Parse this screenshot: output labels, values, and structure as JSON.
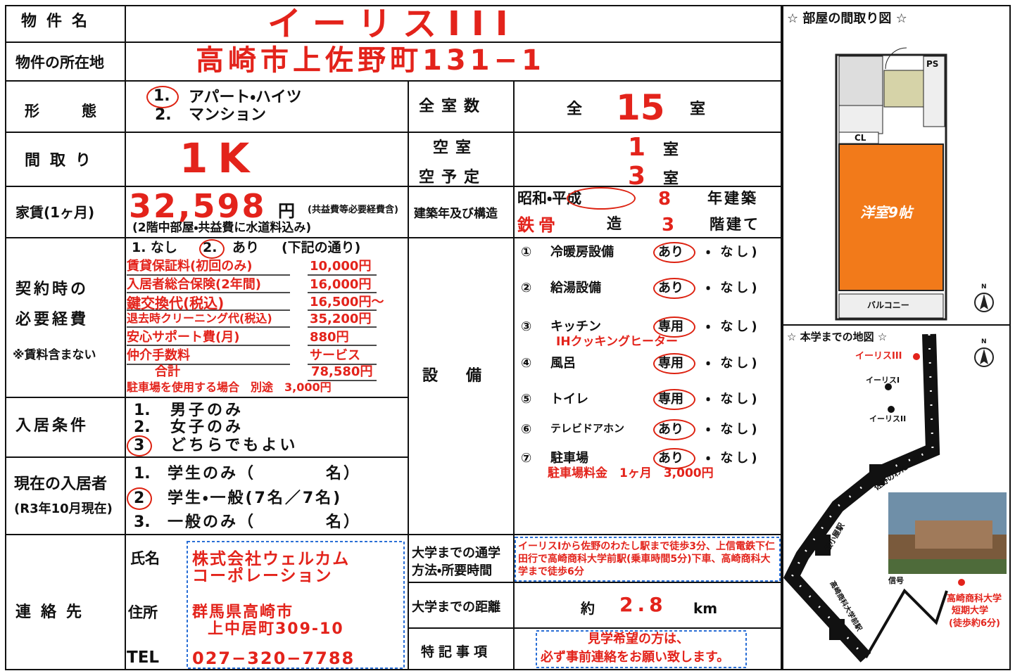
{
  "property_name": {
    "label": "物件名",
    "value": "イーリスIII"
  },
  "location": {
    "label": "物件の所在地",
    "value": "高崎市上佐野町131−1"
  },
  "form": {
    "label": "形態",
    "options": [
      {
        "number": "1.",
        "text": "アパート・ハイツ"
      },
      {
        "number": "2.",
        "text": "マンション"
      }
    ]
  },
  "total_rooms": {
    "label": "全室数",
    "prefix": "全",
    "value": "15",
    "unit": "室"
  },
  "layout": {
    "label": "間取り",
    "value": "1K"
  },
  "vacancy": {
    "vacant_label": "空室",
    "vacant": "1",
    "planned_label": "空予定",
    "planned": "3",
    "unit": "室"
  },
  "rent": {
    "label": "家賃(1ヶ月)",
    "amount": "32,598",
    "unit": "円",
    "note": "(共益費等必要経費含)",
    "detail": "(2階中部屋・共益費に水道料込み)"
  },
  "construction": {
    "label": "建築年及び構造",
    "era": "昭和・平成",
    "year": "8",
    "year_suffix": "年建築",
    "structure": "鉄骨",
    "structure_suffix": "造",
    "floors": "3",
    "floors_suffix": "階建て"
  },
  "contract": {
    "label_lines": [
      "契約時の",
      "必要経費"
    ],
    "note": "※賃料含まない",
    "option_none": "1. なし",
    "option_yes_number": "2.",
    "option_yes": "あり",
    "option_yes_note": "(下記の通り)",
    "items": [
      {
        "name": "賃貸保証料(初回のみ)",
        "amount": "10,000円"
      },
      {
        "name": "入居者総合保険(2年間)",
        "amount": "16,000円"
      },
      {
        "name": "鍵交換代(税込)",
        "amount": "16,500円〜"
      },
      {
        "name": "退去時クリーニング代(税込)",
        "amount": "35,200円"
      },
      {
        "name": "安心サポート費(月)",
        "amount": "880円"
      },
      {
        "name": "仲介手数料",
        "amount": "サービス"
      }
    ],
    "total_label": "合計",
    "total": "78,580円",
    "parking_note": "駐車場を使用する場合　別途　3,000円"
  },
  "facilities": {
    "label": "設備",
    "items": [
      {
        "number": "①",
        "name": "冷暖房設備",
        "choice": "あり",
        "other": "・ なし)"
      },
      {
        "number": "②",
        "name": "給湯設備",
        "choice": "あり",
        "other": "・ なし)"
      },
      {
        "number": "③",
        "name": "キッチン",
        "choice": "専用",
        "other": "・ なし)",
        "note": "IHクッキングヒーター"
      },
      {
        "number": "④",
        "name": "風呂",
        "choice": "専用",
        "other": "・ なし)"
      },
      {
        "number": "⑤",
        "name": "トイレ",
        "choice": "専用",
        "other": "・ なし)"
      },
      {
        "number": "⑥",
        "name": "テレビドアホン",
        "choice": "あり",
        "other": "・ なし)"
      },
      {
        "number": "⑦",
        "name": "駐車場",
        "choice": "あり",
        "other": "・ なし)",
        "note": "駐車場料金　1ヶ月　3,000円"
      }
    ]
  },
  "tenant_condition": {
    "label": "入居条件",
    "options": [
      {
        "number": "1.",
        "text": "男子のみ"
      },
      {
        "number": "2.",
        "text": "女子のみ"
      },
      {
        "number": "3",
        "text": "どちらでもよい"
      }
    ]
  },
  "current_residents": {
    "label": "現在の入居者",
    "as_of": "(R3年10月現在)",
    "options": [
      {
        "number": "1.",
        "text": "学生のみ（　　　　名）"
      },
      {
        "number": "2",
        "text": "学生・一般(7名／7名)"
      },
      {
        "number": "3.",
        "text": "一般のみ（　　　　名）"
      }
    ]
  },
  "contact": {
    "label": "連絡先",
    "name_label": "氏名",
    "name_lines": [
      "株式会社ウェルカム",
      "コーポレーション"
    ],
    "address_label": "住所",
    "address_lines": [
      "群馬県高崎市",
      "上中居町309-10"
    ],
    "tel_label": "TEL",
    "tel": "027−320−7788"
  },
  "commute": {
    "label_lines": [
      "大学までの通学",
      "方法・所要時間"
    ],
    "text": "イーリスIから佐野のわたし駅まで徒歩3分、上信電鉄下仁田行で高崎商科大学前駅(乗車時間5分)下車、高崎商科大学まで徒歩6分"
  },
  "distance": {
    "label": "大学までの距離",
    "prefix": "約",
    "value": "2.8",
    "unit": "km"
  },
  "remarks": {
    "label": "特記事項",
    "lines": [
      "見学希望の方は、",
      "必ず事前連絡をお願い致します。"
    ]
  },
  "floor_plan": {
    "title": "☆ 部屋の間取り図 ☆",
    "labels": {
      "ps": "PS",
      "cl": "CL",
      "room": "洋室9帖",
      "balcony": "バルコニー",
      "north": "N"
    }
  },
  "map": {
    "title": "☆ 本学までの地図 ☆",
    "labels": {
      "iris3": "イーリスIII",
      "iris1": "イーリスI",
      "iris2": "イーリスII",
      "sano": "佐野のわたし駅",
      "nekoya": "根小屋駅",
      "daigakumae": "高崎商科大学前駅",
      "signal": "信号",
      "university": [
        "高崎商科大学",
        "短期大学",
        "(徒歩約6分)"
      ],
      "north": "N"
    }
  }
}
